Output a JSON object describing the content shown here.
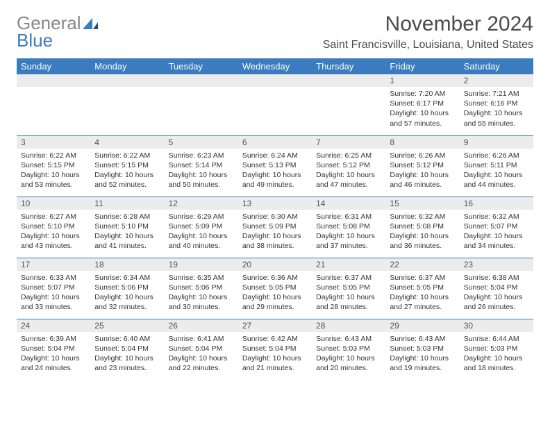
{
  "brand": {
    "word1": "General",
    "word2": "Blue"
  },
  "title": "November 2024",
  "location": "Saint Francisville, Louisiana, United States",
  "colors": {
    "header_bg": "#3b7bbf",
    "header_text": "#ffffff",
    "daynum_bg": "#ececec",
    "cell_border": "#3b7bbf",
    "logo_gray": "#888888",
    "logo_blue": "#3b7bbf"
  },
  "weekdays": [
    "Sunday",
    "Monday",
    "Tuesday",
    "Wednesday",
    "Thursday",
    "Friday",
    "Saturday"
  ],
  "weeks": [
    [
      null,
      null,
      null,
      null,
      null,
      {
        "n": "1",
        "sunrise": "7:20 AM",
        "sunset": "6:17 PM",
        "daylight": "10 hours and 57 minutes."
      },
      {
        "n": "2",
        "sunrise": "7:21 AM",
        "sunset": "6:16 PM",
        "daylight": "10 hours and 55 minutes."
      }
    ],
    [
      {
        "n": "3",
        "sunrise": "6:22 AM",
        "sunset": "5:15 PM",
        "daylight": "10 hours and 53 minutes."
      },
      {
        "n": "4",
        "sunrise": "6:22 AM",
        "sunset": "5:15 PM",
        "daylight": "10 hours and 52 minutes."
      },
      {
        "n": "5",
        "sunrise": "6:23 AM",
        "sunset": "5:14 PM",
        "daylight": "10 hours and 50 minutes."
      },
      {
        "n": "6",
        "sunrise": "6:24 AM",
        "sunset": "5:13 PM",
        "daylight": "10 hours and 49 minutes."
      },
      {
        "n": "7",
        "sunrise": "6:25 AM",
        "sunset": "5:12 PM",
        "daylight": "10 hours and 47 minutes."
      },
      {
        "n": "8",
        "sunrise": "6:26 AM",
        "sunset": "5:12 PM",
        "daylight": "10 hours and 46 minutes."
      },
      {
        "n": "9",
        "sunrise": "6:26 AM",
        "sunset": "5:11 PM",
        "daylight": "10 hours and 44 minutes."
      }
    ],
    [
      {
        "n": "10",
        "sunrise": "6:27 AM",
        "sunset": "5:10 PM",
        "daylight": "10 hours and 43 minutes."
      },
      {
        "n": "11",
        "sunrise": "6:28 AM",
        "sunset": "5:10 PM",
        "daylight": "10 hours and 41 minutes."
      },
      {
        "n": "12",
        "sunrise": "6:29 AM",
        "sunset": "5:09 PM",
        "daylight": "10 hours and 40 minutes."
      },
      {
        "n": "13",
        "sunrise": "6:30 AM",
        "sunset": "5:09 PM",
        "daylight": "10 hours and 38 minutes."
      },
      {
        "n": "14",
        "sunrise": "6:31 AM",
        "sunset": "5:08 PM",
        "daylight": "10 hours and 37 minutes."
      },
      {
        "n": "15",
        "sunrise": "6:32 AM",
        "sunset": "5:08 PM",
        "daylight": "10 hours and 36 minutes."
      },
      {
        "n": "16",
        "sunrise": "6:32 AM",
        "sunset": "5:07 PM",
        "daylight": "10 hours and 34 minutes."
      }
    ],
    [
      {
        "n": "17",
        "sunrise": "6:33 AM",
        "sunset": "5:07 PM",
        "daylight": "10 hours and 33 minutes."
      },
      {
        "n": "18",
        "sunrise": "6:34 AM",
        "sunset": "5:06 PM",
        "daylight": "10 hours and 32 minutes."
      },
      {
        "n": "19",
        "sunrise": "6:35 AM",
        "sunset": "5:06 PM",
        "daylight": "10 hours and 30 minutes."
      },
      {
        "n": "20",
        "sunrise": "6:36 AM",
        "sunset": "5:05 PM",
        "daylight": "10 hours and 29 minutes."
      },
      {
        "n": "21",
        "sunrise": "6:37 AM",
        "sunset": "5:05 PM",
        "daylight": "10 hours and 28 minutes."
      },
      {
        "n": "22",
        "sunrise": "6:37 AM",
        "sunset": "5:05 PM",
        "daylight": "10 hours and 27 minutes."
      },
      {
        "n": "23",
        "sunrise": "6:38 AM",
        "sunset": "5:04 PM",
        "daylight": "10 hours and 26 minutes."
      }
    ],
    [
      {
        "n": "24",
        "sunrise": "6:39 AM",
        "sunset": "5:04 PM",
        "daylight": "10 hours and 24 minutes."
      },
      {
        "n": "25",
        "sunrise": "6:40 AM",
        "sunset": "5:04 PM",
        "daylight": "10 hours and 23 minutes."
      },
      {
        "n": "26",
        "sunrise": "6:41 AM",
        "sunset": "5:04 PM",
        "daylight": "10 hours and 22 minutes."
      },
      {
        "n": "27",
        "sunrise": "6:42 AM",
        "sunset": "5:04 PM",
        "daylight": "10 hours and 21 minutes."
      },
      {
        "n": "28",
        "sunrise": "6:43 AM",
        "sunset": "5:03 PM",
        "daylight": "10 hours and 20 minutes."
      },
      {
        "n": "29",
        "sunrise": "6:43 AM",
        "sunset": "5:03 PM",
        "daylight": "10 hours and 19 minutes."
      },
      {
        "n": "30",
        "sunrise": "6:44 AM",
        "sunset": "5:03 PM",
        "daylight": "10 hours and 18 minutes."
      }
    ]
  ],
  "labels": {
    "sunrise": "Sunrise:",
    "sunset": "Sunset:",
    "daylight": "Daylight:"
  }
}
